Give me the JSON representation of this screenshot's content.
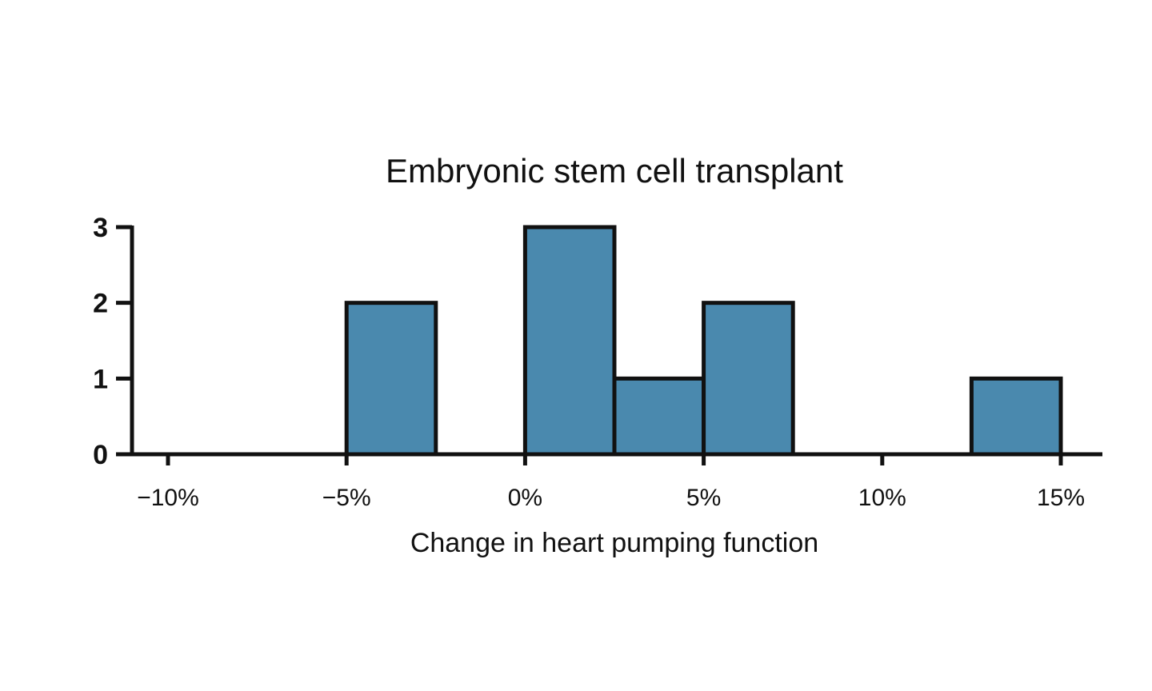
{
  "chart_data": {
    "type": "bar",
    "title": "Embryonic stem cell transplant",
    "xlabel": "Change in heart pumping function",
    "ylabel": "",
    "bar_color": "#4a89ae",
    "edge_color": "#111111",
    "x_ticks": [
      {
        "value": -10,
        "label": "−10%"
      },
      {
        "value": -5,
        "label": "−5%"
      },
      {
        "value": 0,
        "label": "0%"
      },
      {
        "value": 5,
        "label": "5%"
      },
      {
        "value": 10,
        "label": "10%"
      },
      {
        "value": 15,
        "label": "15%"
      }
    ],
    "y_ticks": [
      {
        "value": 0,
        "label": "0"
      },
      {
        "value": 1,
        "label": "1"
      },
      {
        "value": 2,
        "label": "2"
      },
      {
        "value": 3,
        "label": "3"
      }
    ],
    "xlim": [
      -11,
      16.2
    ],
    "ylim": [
      0,
      3
    ],
    "bins": [
      {
        "start": -12.5,
        "end": -10,
        "count": 0
      },
      {
        "start": -10,
        "end": -7.5,
        "count": 0
      },
      {
        "start": -7.5,
        "end": -5,
        "count": 0
      },
      {
        "start": -5,
        "end": -2.5,
        "count": 2
      },
      {
        "start": -2.5,
        "end": 0,
        "count": 0
      },
      {
        "start": 0,
        "end": 2.5,
        "count": 3
      },
      {
        "start": 2.5,
        "end": 5,
        "count": 1
      },
      {
        "start": 5,
        "end": 7.5,
        "count": 2
      },
      {
        "start": 7.5,
        "end": 10,
        "count": 0
      },
      {
        "start": 10,
        "end": 12.5,
        "count": 0
      },
      {
        "start": 12.5,
        "end": 15,
        "count": 1
      }
    ],
    "grid": false,
    "legend": "none"
  }
}
